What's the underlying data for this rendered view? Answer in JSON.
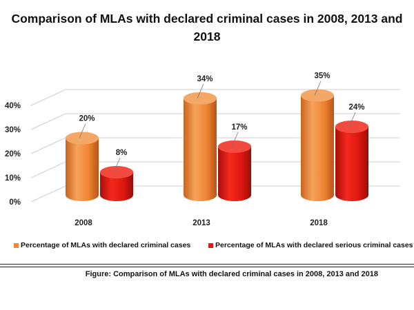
{
  "title": "Comparison of MLAs with declared criminal cases in 2008, 2013 and 2018",
  "caption": "Figure: Comparison of MLAs with declared criminal cases in 2008, 2013 and 2018",
  "colors": {
    "series1": "#f0883a",
    "series2": "#e41a12",
    "grid": "#cfcfcf"
  },
  "chart_data": {
    "type": "bar",
    "style": "3d-cylinder",
    "title": "Comparison of MLAs with declared criminal cases in 2008, 2013 and 2018",
    "categories": [
      "2008",
      "2013",
      "2018"
    ],
    "series": [
      {
        "name": "Percentage of MLAs with declared criminal  cases",
        "values": [
          20,
          34,
          35
        ],
        "labels": [
          "20%",
          "34%",
          "35%"
        ]
      },
      {
        "name": "Percentage of MLAs with declared serious criminal cases",
        "values": [
          8,
          17,
          24
        ],
        "labels": [
          "8%",
          "17%",
          "24%"
        ]
      }
    ],
    "yticks": [
      "0%",
      "10%",
      "20%",
      "30%",
      "40%"
    ],
    "ylim": [
      0,
      40
    ],
    "grid": true,
    "legend_position": "bottom"
  }
}
